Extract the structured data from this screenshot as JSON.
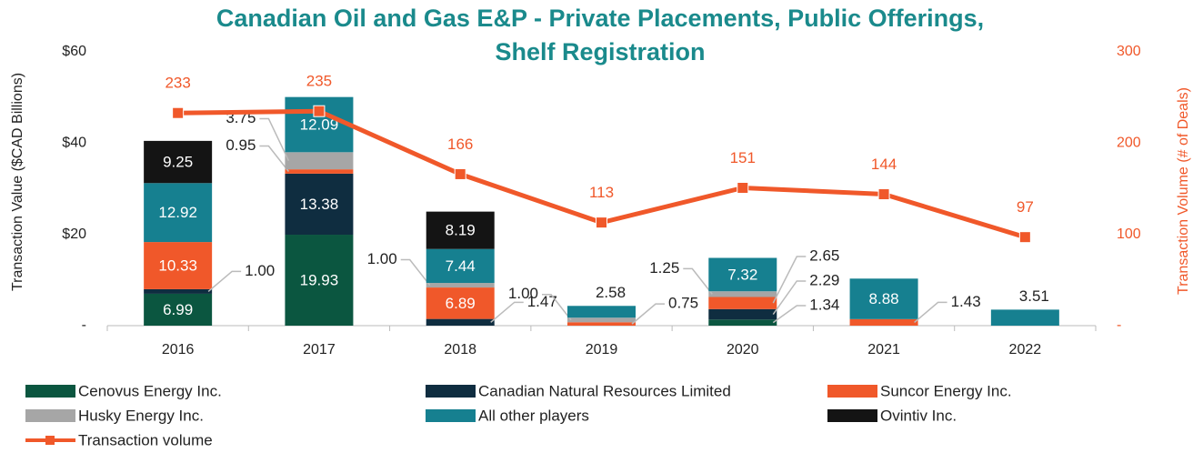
{
  "chart_data": {
    "type": "bar",
    "stacked": true,
    "title": "Canadian Oil and Gas E&P - Private Placements, Public Offerings, Shelf Registration",
    "y_label": "Transaction Value ($CAD Billions)",
    "y2_label": "Transaction Volume (# of Deals)",
    "categories": [
      "2016",
      "2017",
      "2018",
      "2019",
      "2020",
      "2021",
      "2022"
    ],
    "ylim": [
      0,
      60
    ],
    "yticks": [
      {
        "value": 0,
        "label": "-"
      },
      {
        "value": 20,
        "label": "$20"
      },
      {
        "value": 40,
        "label": "$40"
      },
      {
        "value": 60,
        "label": "$60"
      }
    ],
    "y2lim": [
      0,
      300
    ],
    "y2ticks": [
      {
        "value": 0,
        "label": "-"
      },
      100,
      200,
      300
    ],
    "legend": "bottom",
    "series": [
      {
        "name": "Cenovus Energy Inc.",
        "color": "#0b5640",
        "values": [
          6.99,
          19.93,
          null,
          null,
          1.34,
          null,
          null
        ],
        "value_labels": [
          "6.99",
          "19.93",
          null,
          null,
          "1.34",
          null,
          null
        ]
      },
      {
        "name": "Canadian Natural Resources Limited",
        "color": "#0f2d40",
        "values": [
          1.0,
          13.38,
          1.47,
          null,
          2.29,
          null,
          null
        ],
        "value_labels": [
          "1.00",
          "13.38",
          "1.47",
          null,
          "2.29",
          null,
          null
        ]
      },
      {
        "name": "Suncor Energy Inc.",
        "color": "#f0582a",
        "values": [
          10.33,
          0.95,
          6.89,
          0.75,
          2.65,
          1.43,
          null
        ],
        "value_labels": [
          "10.33",
          "0.95",
          "6.89",
          "0.75",
          "2.65",
          "1.43",
          null
        ]
      },
      {
        "name": "Husky Energy Inc.",
        "color": "#a6a6a6",
        "values": [
          null,
          3.75,
          1.0,
          1.0,
          1.25,
          null,
          null
        ],
        "value_labels": [
          null,
          "3.75",
          "1.00",
          "1.00",
          "1.25",
          null,
          null
        ]
      },
      {
        "name": "All other players",
        "color": "#168090",
        "values": [
          12.92,
          12.09,
          7.44,
          2.58,
          7.32,
          8.88,
          3.51
        ],
        "value_labels": [
          "12.92",
          "12.09",
          "7.44",
          "2.58",
          "7.32",
          "8.88",
          "3.51"
        ]
      },
      {
        "name": "Ovintiv Inc.",
        "color": "#141414",
        "values": [
          9.25,
          null,
          8.19,
          null,
          null,
          null,
          null
        ],
        "value_labels": [
          "9.25",
          null,
          "8.19",
          null,
          null,
          null,
          null
        ]
      },
      {
        "name": "Transaction volume",
        "type": "line",
        "axis": "y2",
        "color": "#f0582a",
        "values": [
          233,
          235,
          166,
          113,
          151,
          144,
          97
        ]
      }
    ]
  }
}
